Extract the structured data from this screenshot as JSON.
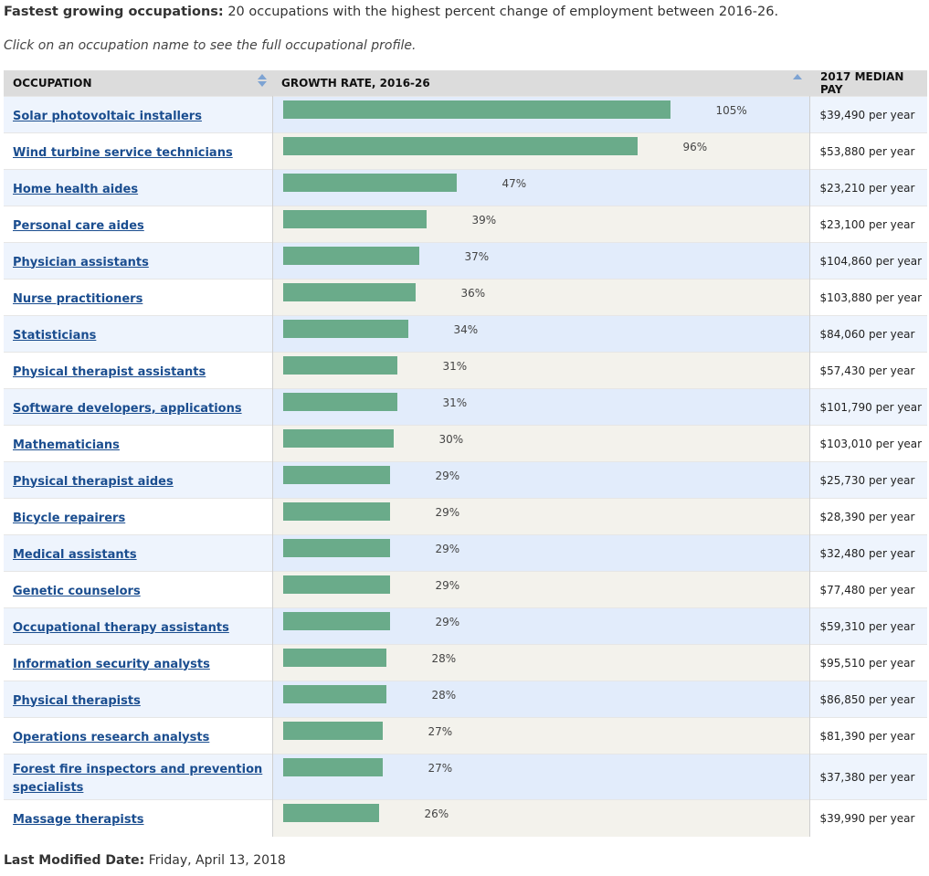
{
  "heading": {
    "title": "Fastest growing occupations:",
    "description": " 20 occupations with the highest percent change of employment between 2016-26."
  },
  "instruction": "Click on an occupation name to see the full occupational profile.",
  "table": {
    "headers": {
      "occupation": "OCCUPATION",
      "growth": "GROWTH RATE, 2016-26",
      "pay": "2017 MEDIAN PAY"
    },
    "rows": [
      {
        "name": "Solar photovoltaic installers",
        "growth": 105,
        "growth_label": "105%",
        "pay": "$39,490 per year"
      },
      {
        "name": "Wind turbine service technicians",
        "growth": 96,
        "growth_label": "96%",
        "pay": "$53,880 per year"
      },
      {
        "name": "Home health aides",
        "growth": 47,
        "growth_label": "47%",
        "pay": "$23,210 per year"
      },
      {
        "name": "Personal care aides",
        "growth": 39,
        "growth_label": "39%",
        "pay": "$23,100 per year"
      },
      {
        "name": "Physician assistants",
        "growth": 37,
        "growth_label": "37%",
        "pay": "$104,860 per year"
      },
      {
        "name": "Nurse practitioners",
        "growth": 36,
        "growth_label": "36%",
        "pay": "$103,880 per year"
      },
      {
        "name": "Statisticians",
        "growth": 34,
        "growth_label": "34%",
        "pay": "$84,060 per year"
      },
      {
        "name": "Physical therapist assistants",
        "growth": 31,
        "growth_label": "31%",
        "pay": "$57,430 per year"
      },
      {
        "name": "Software developers, applications",
        "growth": 31,
        "growth_label": "31%",
        "pay": "$101,790 per year"
      },
      {
        "name": "Mathematicians",
        "growth": 30,
        "growth_label": "30%",
        "pay": "$103,010 per year"
      },
      {
        "name": "Physical therapist aides",
        "growth": 29,
        "growth_label": "29%",
        "pay": "$25,730 per year"
      },
      {
        "name": "Bicycle repairers",
        "growth": 29,
        "growth_label": "29%",
        "pay": "$28,390 per year"
      },
      {
        "name": "Medical assistants",
        "growth": 29,
        "growth_label": "29%",
        "pay": "$32,480 per year"
      },
      {
        "name": "Genetic counselors",
        "growth": 29,
        "growth_label": "29%",
        "pay": "$77,480 per year"
      },
      {
        "name": "Occupational therapy assistants",
        "growth": 29,
        "growth_label": "29%",
        "pay": "$59,310 per year"
      },
      {
        "name": "Information security analysts",
        "growth": 28,
        "growth_label": "28%",
        "pay": "$95,510 per year"
      },
      {
        "name": "Physical therapists",
        "growth": 28,
        "growth_label": "28%",
        "pay": "$86,850 per year"
      },
      {
        "name": "Operations research analysts",
        "growth": 27,
        "growth_label": "27%",
        "pay": "$81,390 per year"
      },
      {
        "name": "Forest fire inspectors and prevention specialists",
        "growth": 27,
        "growth_label": "27%",
        "pay": "$37,380 per year"
      },
      {
        "name": "Massage therapists",
        "growth": 26,
        "growth_label": "26%",
        "pay": "$39,990 per year"
      }
    ]
  },
  "footer": {
    "label": "Last Modified Date:",
    "value": " Friday, April 13, 2018"
  },
  "colors": {
    "bar": "#6aab8a",
    "link": "#1a4d8f"
  }
}
